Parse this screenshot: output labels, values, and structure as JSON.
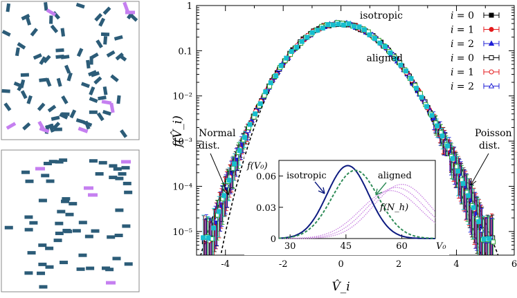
{
  "chart_data": {
    "type": "scatter",
    "main": {
      "xlabel": "V̂_i",
      "ylabel": "f(V̂_i)",
      "xlim": [
        -5,
        6
      ],
      "ylim": [
        3e-06,
        1
      ],
      "yscale": "log",
      "x_ticks": [
        -4,
        -2,
        0,
        2,
        4,
        6
      ],
      "x_tick_labels": [
        "-4",
        "-2",
        "0",
        "2",
        "4",
        "6"
      ],
      "y_ticks": [
        1e-05,
        0.0001,
        0.001,
        0.01,
        0.1,
        1
      ],
      "y_tick_labels": [
        "10⁻⁵",
        "10⁻⁴",
        "10⁻³",
        "10⁻²",
        "0.1",
        "1"
      ],
      "legend_position": "top-right",
      "legend": [
        {
          "group": "isotropic",
          "label": "i = 0",
          "color": "#000000",
          "marker": "square-filled"
        },
        {
          "group": "",
          "label": "i = 1",
          "color": "#e41a1c",
          "marker": "circle-filled"
        },
        {
          "group": "",
          "label": "i = 2",
          "color": "#1f1fd6",
          "marker": "triangle-filled"
        },
        {
          "group": "aligned",
          "label": "i = 0",
          "color": "#000000",
          "marker": "square-open"
        },
        {
          "group": "",
          "label": "i = 1",
          "color": "#e41a1c",
          "marker": "circle-open"
        },
        {
          "group": "",
          "label": "i = 2",
          "color": "#1f1fd6",
          "marker": "triangle-open"
        }
      ],
      "annotations": [
        {
          "text": [
            "Normal",
            "dist."
          ],
          "points_to": "normal-curve"
        },
        {
          "text": [
            "Poisson",
            "dist."
          ],
          "points_to": "poisson-curve"
        }
      ],
      "series": [
        {
          "name": "isotropic i = 0",
          "color": "#000000",
          "marker": "square-filled",
          "dx": -0.03
        },
        {
          "name": "isotropic i = 1",
          "color": "#e41a1c",
          "marker": "circle-filled",
          "dx": 0.02
        },
        {
          "name": "isotropic i = 2",
          "color": "#1f1fd6",
          "marker": "triangle-filled",
          "dx": -0.01
        },
        {
          "name": "aligned i = 0",
          "color": "#000000",
          "marker": "square-open",
          "dx": 0.05
        },
        {
          "name": "aligned i = 1",
          "color": "#e41a1c",
          "marker": "circle-open",
          "dx": -0.05
        },
        {
          "name": "aligned i = 2",
          "color": "#1f1fd6",
          "marker": "triangle-open",
          "dx": 0.04
        },
        {
          "name": "",
          "color": "#2ca02c",
          "marker": "square-open",
          "dx": 0.07
        },
        {
          "name": "",
          "color": "#17becf",
          "marker": "square-filled",
          "dx": -0.07
        }
      ],
      "curves": [
        {
          "id": "normal-curve",
          "kind": "normal",
          "mean": 0,
          "sd": 1,
          "style": "dashed",
          "color": "#000000"
        },
        {
          "id": "poisson-curve",
          "kind": "poisson-standardized",
          "lambda": 30,
          "style": "dashed",
          "color": "#000000"
        }
      ]
    },
    "inset": {
      "ylabel": "f(V₀)",
      "xlabel": "V₀",
      "xlim": [
        27,
        69
      ],
      "ylim": [
        0,
        0.075
      ],
      "x_ticks": [
        30,
        45,
        60
      ],
      "x_tick_labels": [
        "30",
        "45",
        "60"
      ],
      "y_ticks": [
        0,
        0.03,
        0.06
      ],
      "y_tick_labels": [
        "0",
        "0.03",
        "0.06"
      ],
      "series": [
        {
          "name": "isotropic",
          "mean": 45.5,
          "sd": 5.6,
          "color": "#0c1a80",
          "style": "solid"
        },
        {
          "name": "aligned",
          "mean": 47.5,
          "sd": 6.2,
          "color": "#2e8b57",
          "style": "dashed"
        }
      ],
      "fNh_label": "f(N_h)",
      "fNh_curves": [
        {
          "mean": 57.0,
          "sd": 8.0,
          "peak": 0.046
        },
        {
          "mean": 58.5,
          "sd": 7.8,
          "peak": 0.049
        },
        {
          "mean": 60.0,
          "sd": 7.6,
          "peak": 0.052
        }
      ],
      "fNh_color": "#c77ee0",
      "labels": {
        "isotropic": "isotropic",
        "aligned": "aligned"
      }
    },
    "panels": [
      {
        "name": "isotropic-configuration",
        "colors": {
          "rod": "#2c5c78",
          "cluster": "#c57ff0",
          "border": "#888888"
        }
      },
      {
        "name": "aligned-configuration",
        "colors": {
          "rod": "#2c5c78",
          "cluster": "#c57ff0",
          "border": "#888888"
        }
      }
    ]
  }
}
